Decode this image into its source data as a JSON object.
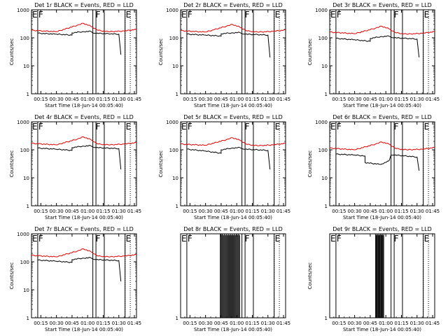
{
  "x_tick_labels": [
    "00:15",
    "00:30",
    "00:45",
    "01:00",
    "01:15",
    "01:30",
    "01:45"
  ],
  "y_tick_labels": [
    "1",
    "10",
    "100",
    "1000"
  ],
  "ylabel": "Counts/sec",
  "xlabel": "Start Time (18-Jun-14 00:05:40)",
  "colors": {
    "events": "#000000",
    "lld": "#e00000",
    "axes": "#000000"
  },
  "chart_data": [
    {
      "type": "line",
      "title": "Det 1r BLACK = Events, RED = LLD",
      "xlabel": "Start Time (18-Jun-14 00:05:40)",
      "ylabel": "Counts/sec",
      "yscale": "log",
      "ylim": [
        1,
        1000
      ],
      "xlim": [
        "00:06",
        "01:47"
      ],
      "markers": [
        {
          "label": "E",
          "time": "00:06"
        },
        {
          "label": "F",
          "time": "00:12"
        },
        {
          "label": "F",
          "time": "01:07"
        },
        {
          "label": "E",
          "time": "01:36"
        }
      ],
      "vertical_lines": [
        "00:12",
        "01:05",
        "01:08",
        "01:16",
        "01:36"
      ],
      "dotted_lines": [
        "01:36",
        "01:41"
      ],
      "series": [
        {
          "name": "BLACK = Events",
          "color": "#000000",
          "x": [
            "00:12",
            "00:30",
            "00:45",
            "00:45",
            "00:55",
            "01:03",
            "01:05",
            "01:08",
            "01:20",
            "01:30",
            "01:32"
          ],
          "y": [
            145,
            135,
            125,
            150,
            165,
            170,
            150,
            145,
            140,
            135,
            25
          ]
        },
        {
          "name": "RED = LLD",
          "color": "#e00000",
          "x": [
            "00:06",
            "00:30",
            "00:50",
            "00:56",
            "01:03",
            "01:10",
            "01:20",
            "01:35",
            "01:47"
          ],
          "y": [
            185,
            165,
            280,
            330,
            260,
            185,
            165,
            175,
            200
          ]
        }
      ]
    },
    {
      "type": "line",
      "title": "Det 2r BLACK = Events, RED = LLD",
      "xlabel": "Start Time (18-Jun-14 00:05:40)",
      "ylabel": "Counts/sec",
      "yscale": "log",
      "ylim": [
        1,
        1000
      ],
      "xlim": [
        "00:06",
        "01:47"
      ],
      "markers": [
        {
          "label": "E",
          "time": "00:06"
        },
        {
          "label": "F",
          "time": "00:12"
        },
        {
          "label": "F",
          "time": "01:07"
        },
        {
          "label": "E",
          "time": "01:36"
        }
      ],
      "vertical_lines": [
        "00:12",
        "01:05",
        "01:08",
        "01:16",
        "01:36"
      ],
      "dotted_lines": [
        "01:36",
        "01:41"
      ],
      "series": [
        {
          "name": "BLACK = Events",
          "color": "#000000",
          "x": [
            "00:12",
            "00:30",
            "00:45",
            "00:45",
            "00:55",
            "01:03",
            "01:05",
            "01:08",
            "01:20",
            "01:30",
            "01:32"
          ],
          "y": [
            135,
            125,
            115,
            140,
            150,
            155,
            140,
            135,
            130,
            125,
            20
          ]
        },
        {
          "name": "RED = LLD",
          "color": "#e00000",
          "x": [
            "00:06",
            "00:30",
            "00:50",
            "00:56",
            "01:03",
            "01:10",
            "01:20",
            "01:35",
            "01:47"
          ],
          "y": [
            180,
            160,
            260,
            300,
            240,
            175,
            160,
            170,
            190
          ]
        }
      ]
    },
    {
      "type": "line",
      "title": "Det 3r BLACK = Events, RED = LLD",
      "xlabel": "Start Time (18-Jun-14 00:05:40)",
      "ylabel": "Counts/sec",
      "yscale": "log",
      "ylim": [
        1,
        1000
      ],
      "xlim": [
        "00:06",
        "01:47"
      ],
      "markers": [
        {
          "label": "E",
          "time": "00:06"
        },
        {
          "label": "F",
          "time": "00:12"
        },
        {
          "label": "F",
          "time": "01:07"
        },
        {
          "label": "E",
          "time": "01:36"
        }
      ],
      "vertical_lines": [
        "00:12",
        "01:05",
        "01:08",
        "01:16",
        "01:36"
      ],
      "dotted_lines": [
        "01:36",
        "01:41"
      ],
      "series": [
        {
          "name": "BLACK = Events",
          "color": "#000000",
          "x": [
            "00:12",
            "00:30",
            "00:45",
            "00:45",
            "00:55",
            "01:03",
            "01:05",
            "01:08",
            "01:20",
            "01:30",
            "01:32"
          ],
          "y": [
            95,
            85,
            75,
            95,
            110,
            115,
            105,
            100,
            95,
            90,
            20
          ]
        },
        {
          "name": "RED = LLD",
          "color": "#e00000",
          "x": [
            "00:06",
            "00:30",
            "00:50",
            "00:56",
            "01:03",
            "01:10",
            "01:20",
            "01:35",
            "01:47"
          ],
          "y": [
            160,
            140,
            220,
            260,
            210,
            150,
            135,
            145,
            165
          ]
        }
      ]
    },
    {
      "type": "line",
      "title": "Det 4r BLACK = Events, RED = LLD",
      "xlabel": "Start Time (18-Jun-14 00:05:40)",
      "ylabel": "Counts/sec",
      "yscale": "log",
      "ylim": [
        1,
        1000
      ],
      "xlim": [
        "00:06",
        "01:47"
      ],
      "markers": [
        {
          "label": "E",
          "time": "00:06"
        },
        {
          "label": "F",
          "time": "00:12"
        },
        {
          "label": "F",
          "time": "01:07"
        },
        {
          "label": "E",
          "time": "01:36"
        }
      ],
      "vertical_lines": [
        "00:12",
        "01:05",
        "01:08",
        "01:16",
        "01:36"
      ],
      "dotted_lines": [
        "01:36",
        "01:41"
      ],
      "series": [
        {
          "name": "BLACK = Events",
          "color": "#000000",
          "x": [
            "00:12",
            "00:30",
            "00:45",
            "00:45",
            "00:55",
            "01:03",
            "01:05",
            "01:08",
            "01:20",
            "01:30",
            "01:32"
          ],
          "y": [
            115,
            105,
            95,
            120,
            135,
            140,
            125,
            120,
            115,
            110,
            20
          ]
        },
        {
          "name": "RED = LLD",
          "color": "#e00000",
          "x": [
            "00:06",
            "00:30",
            "00:50",
            "00:56",
            "01:03",
            "01:10",
            "01:20",
            "01:35",
            "01:47"
          ],
          "y": [
            170,
            150,
            240,
            290,
            230,
            160,
            150,
            160,
            180
          ]
        }
      ]
    },
    {
      "type": "line",
      "title": "Det 5r BLACK = Events, RED = LLD",
      "xlabel": "Start Time (18-Jun-14 00:05:40)",
      "ylabel": "Counts/sec",
      "yscale": "log",
      "ylim": [
        1,
        1000
      ],
      "xlim": [
        "00:06",
        "01:47"
      ],
      "markers": [
        {
          "label": "E",
          "time": "00:06"
        },
        {
          "label": "F",
          "time": "00:12"
        },
        {
          "label": "F",
          "time": "01:07"
        },
        {
          "label": "E",
          "time": "01:36"
        }
      ],
      "vertical_lines": [
        "00:12",
        "01:05",
        "01:08",
        "01:16",
        "01:36"
      ],
      "dotted_lines": [
        "01:36",
        "01:41"
      ],
      "series": [
        {
          "name": "BLACK = Events",
          "color": "#000000",
          "x": [
            "00:12",
            "00:30",
            "00:45",
            "00:45",
            "00:55",
            "01:03",
            "01:05",
            "01:08",
            "01:20",
            "01:30",
            "01:32"
          ],
          "y": [
            105,
            90,
            75,
            100,
            115,
            120,
            110,
            105,
            100,
            95,
            20
          ]
        },
        {
          "name": "RED = LLD",
          "color": "#e00000",
          "x": [
            "00:06",
            "00:30",
            "00:50",
            "00:56",
            "01:03",
            "01:10",
            "01:20",
            "01:35",
            "01:47"
          ],
          "y": [
            160,
            145,
            230,
            270,
            220,
            155,
            140,
            150,
            170
          ]
        }
      ]
    },
    {
      "type": "line",
      "title": "Det 6r BLACK = Events, RED = LLD",
      "xlabel": "Start Time (18-Jun-14 00:05:40)",
      "ylabel": "Counts/sec",
      "yscale": "log",
      "ylim": [
        1,
        1000
      ],
      "xlim": [
        "00:06",
        "01:47"
      ],
      "markers": [
        {
          "label": "E",
          "time": "00:06"
        },
        {
          "label": "F",
          "time": "00:12"
        },
        {
          "label": "F",
          "time": "01:07"
        },
        {
          "label": "E",
          "time": "01:36"
        }
      ],
      "vertical_lines": [
        "00:12",
        "01:05",
        "01:08",
        "01:16",
        "01:36"
      ],
      "dotted_lines": [
        "01:36",
        "01:41"
      ],
      "series": [
        {
          "name": "BLACK = Events",
          "color": "#000000",
          "x": [
            "00:12",
            "00:30",
            "00:40",
            "00:40",
            "00:55",
            "01:03",
            "01:05",
            "01:08",
            "01:20",
            "01:30",
            "01:32"
          ],
          "y": [
            70,
            65,
            60,
            35,
            30,
            40,
            65,
            65,
            60,
            55,
            18
          ]
        },
        {
          "name": "RED = LLD",
          "color": "#e00000",
          "x": [
            "00:06",
            "00:30",
            "00:50",
            "00:56",
            "01:03",
            "01:10",
            "01:20",
            "01:35",
            "01:47"
          ],
          "y": [
            115,
            100,
            160,
            190,
            160,
            110,
            100,
            105,
            120
          ]
        }
      ]
    },
    {
      "type": "line",
      "title": "Det 7r BLACK = Events, RED = LLD",
      "xlabel": "Start Time (18-Jun-14 00:05:40)",
      "ylabel": "Counts/sec",
      "yscale": "log",
      "ylim": [
        1,
        1000
      ],
      "xlim": [
        "00:06",
        "01:47"
      ],
      "markers": [
        {
          "label": "E",
          "time": "00:06"
        },
        {
          "label": "F",
          "time": "00:12"
        },
        {
          "label": "F",
          "time": "01:07"
        },
        {
          "label": "E",
          "time": "01:36"
        }
      ],
      "vertical_lines": [
        "00:12",
        "01:05",
        "01:08",
        "01:16",
        "01:36"
      ],
      "dotted_lines": [
        "01:36",
        "01:41"
      ],
      "series": [
        {
          "name": "BLACK = Events",
          "color": "#000000",
          "x": [
            "00:12",
            "00:30",
            "00:45",
            "00:45",
            "00:55",
            "01:03",
            "01:05",
            "01:08",
            "01:20",
            "01:30",
            "01:32"
          ],
          "y": [
            115,
            105,
            95,
            120,
            135,
            140,
            125,
            120,
            115,
            110,
            20
          ]
        },
        {
          "name": "RED = LLD",
          "color": "#e00000",
          "x": [
            "00:06",
            "00:30",
            "00:50",
            "00:56",
            "01:03",
            "01:10",
            "01:20",
            "01:35",
            "01:47"
          ],
          "y": [
            170,
            150,
            240,
            290,
            230,
            160,
            150,
            160,
            180
          ]
        }
      ]
    },
    {
      "type": "line",
      "title": "Det 8r BLACK = Events, RED = LLD",
      "xlabel": "Start Time (18-Jun-14 00:05:40)",
      "ylabel": "",
      "yscale": "log",
      "ylim": [
        1,
        2
      ],
      "xlim": [
        "00:06",
        "01:47"
      ],
      "markers": [
        {
          "label": "E",
          "time": "00:06"
        },
        {
          "label": "F",
          "time": "00:12"
        },
        {
          "label": "F",
          "time": "01:07"
        },
        {
          "label": "E",
          "time": "01:36"
        }
      ],
      "vertical_lines": [
        "00:12",
        "01:05",
        "01:08",
        "01:16",
        "01:36"
      ],
      "dotted_lines": [
        "01:36",
        "01:41"
      ],
      "events_spikes": {
        "x_start": "00:44",
        "x_end": "01:03",
        "count": 30,
        "height": 2
      },
      "series": []
    },
    {
      "type": "line",
      "title": "Det 9r BLACK = Events, RED = LLD",
      "xlabel": "Start Time (18-Jun-14 00:05:40)",
      "ylabel": "Counts/sec",
      "yscale": "log",
      "ylim": [
        1,
        2
      ],
      "xlim": [
        "00:06",
        "01:47"
      ],
      "markers": [
        {
          "label": "E",
          "time": "00:06"
        },
        {
          "label": "F",
          "time": "00:12"
        },
        {
          "label": "F",
          "time": "01:07"
        },
        {
          "label": "E",
          "time": "01:36"
        }
      ],
      "vertical_lines": [
        "00:12",
        "01:05",
        "01:08",
        "01:16",
        "01:36"
      ],
      "dotted_lines": [
        "01:36",
        "01:41"
      ],
      "events_spikes": {
        "x_start": "00:50",
        "x_end": "00:58",
        "count": 16,
        "height": 2
      },
      "series": []
    }
  ]
}
